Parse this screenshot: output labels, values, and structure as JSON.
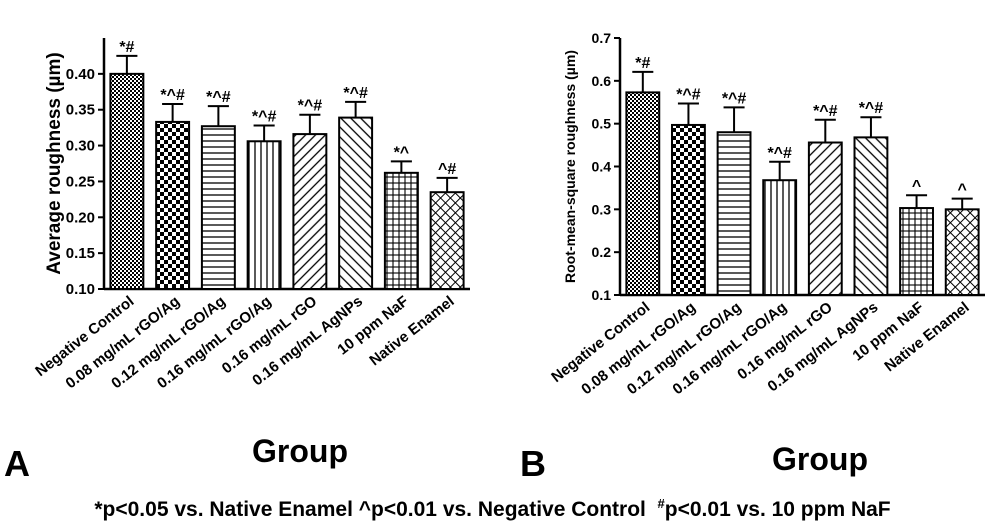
{
  "panels": {
    "a": {
      "letter": "A"
    },
    "b": {
      "letter": "B"
    }
  },
  "footnote": {
    "star": "*p<0.05 vs. Native Enamel ^p<0.01 vs. Negative Control",
    "hash_mark": "#",
    "hash_text": "p<0.01 vs. 10 ppm NaF"
  },
  "chart_data": [
    {
      "type": "bar",
      "panel": "A",
      "categories": [
        "Negative Control",
        "0.08 mg/mL rGO/Ag",
        "0.12 mg/mL rGO/Ag",
        "0.16 mg/mL rGO/Ag",
        "0.16 mg/mL  rGO",
        "0.16 mg/mL  AgNPs",
        "10 ppm  NaF",
        "Native Enamel"
      ],
      "values": [
        0.4,
        0.333,
        0.327,
        0.306,
        0.316,
        0.339,
        0.262,
        0.235
      ],
      "error": [
        0.025,
        0.025,
        0.028,
        0.022,
        0.027,
        0.022,
        0.016,
        0.02
      ],
      "annotations": [
        "*#",
        "*^#",
        "*^#",
        "*^#",
        "*^#",
        "*^#",
        "*^",
        "^#"
      ],
      "xlabel": "Group",
      "ylabel": "Average roughness (µm)",
      "ylim": [
        0.1,
        0.45
      ],
      "yticks": [
        "0.10",
        "0.15",
        "0.20",
        "0.25",
        "0.30",
        "0.35",
        "0.40"
      ],
      "patterns": [
        "fine-checker",
        "checker",
        "horizontal",
        "vertical",
        "diagonal-right",
        "diagonal-left",
        "grid",
        "crosshatch"
      ],
      "grid": false
    },
    {
      "type": "bar",
      "panel": "B",
      "categories": [
        "Negative Control",
        "0.08 mg/mL rGO/Ag",
        "0.12 mg/mL rGO/Ag",
        "0.16 mg/mL rGO/Ag",
        "0.16 mg/mL  rGO",
        "0.16 mg/mL  AgNPs",
        "10 ppm  NaF",
        "Native Enamel"
      ],
      "values": [
        0.573,
        0.497,
        0.48,
        0.368,
        0.456,
        0.468,
        0.303,
        0.3
      ],
      "error": [
        0.048,
        0.05,
        0.058,
        0.043,
        0.053,
        0.047,
        0.03,
        0.025
      ],
      "annotations": [
        "*#",
        "*^#",
        "*^#",
        "*^#",
        "*^#",
        "*^#",
        "^",
        "^"
      ],
      "xlabel": "Group",
      "ylabel": "Root-mean-square roughness (µm)",
      "ylim": [
        0.1,
        0.7
      ],
      "yticks": [
        "0.1",
        "0.2",
        "0.3",
        "0.4",
        "0.5",
        "0.6",
        "0.7"
      ],
      "patterns": [
        "fine-checker",
        "checker",
        "horizontal",
        "vertical",
        "diagonal-right",
        "diagonal-left",
        "grid",
        "crosshatch"
      ],
      "grid": false
    }
  ]
}
